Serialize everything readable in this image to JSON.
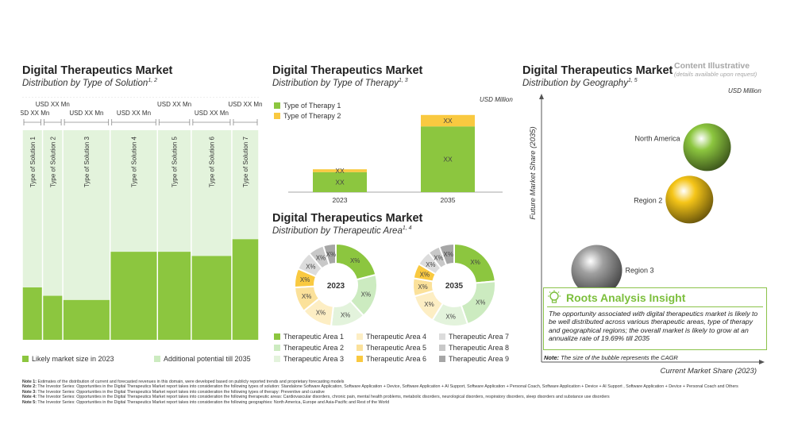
{
  "colors": {
    "bright_green": "#8cc63f",
    "light_green": "#ccebc0",
    "pale_green": "#e3f3dc",
    "yellow": "#f9c940",
    "light_yellow": "#fbe19a",
    "pale_yellow": "#fdeec4",
    "gray1": "#c8c8c8",
    "gray2": "#dcdcdc",
    "gray3": "#a6a6a6",
    "insight_green": "#7cbf3c"
  },
  "solution": {
    "title": "Digital Therapeutics Market",
    "subtitle": "Distribution by Type of Solution",
    "subtitle_sup": "1, 2",
    "legend": [
      "Likely market size in 2023",
      "Additional potential till 2035"
    ]
  },
  "therapy": {
    "title": "Digital Therapeutics Market",
    "subtitle": "Distribution by Type of Therapy",
    "subtitle_sup": "1, 3",
    "unit": "USD Million",
    "legend": [
      "Type of Therapy 1",
      "Type of Therapy 2"
    ]
  },
  "area": {
    "title": "Digital Therapeutics Market",
    "subtitle": "Distribution by Therapeutic Area",
    "subtitle_sup": "1, 4",
    "legend": [
      "Therapeutic Area 1",
      "Therapeutic Area 2",
      "Therapeutic Area 3",
      "Therapeutic Area 4",
      "Therapeutic Area 5",
      "Therapeutic Area 6",
      "Therapeutic Area 7",
      "Therapeutic Area 8",
      "Therapeutic Area 9"
    ]
  },
  "geo": {
    "title": "Digital Therapeutics Market",
    "subtitle": "Distribution by Geography",
    "subtitle_sup": "1, 5",
    "content_illustrative": "Content Illustrative",
    "details": "(details available upon request)",
    "unit": "USD Million",
    "y_label": "Future Market Share (2035)",
    "x_label": "Current Market Share (2023)",
    "note_label": "Note:",
    "note_text": "The size of the bubble represents the CAGR"
  },
  "insight": {
    "title": "Roots Analysis Insight",
    "text": "The opportunity associated with digital therapeutics market is likely to be well distributed across various therapeutic areas, type of therapy and geographical regions; the overall market is likely to grow at an annualize rate of 19.69% till 2035"
  },
  "notes": [
    {
      "label": "Note 1:",
      "text": "Estimates of the distribution of current and forecasted revenues in this domain, were developed based on publicly reported trends and proprietary forecasting models"
    },
    {
      "label": "Note 2:",
      "text": "The Investor Series: Opportunities in the Digital Therapeutics Market report takes into consideration the following types of solution: Standalone Software Application, Software Application + Device, Software Application + AI Support, Software Application + Personal Coach, Software Application + Device + AI Support , Software Application + Device + Personal Coach and Others"
    },
    {
      "label": "Note 3:",
      "text": "The Investor Series: Opportunities in the Digital Therapeutics Market report takes into consideration the following types of therapy: Preventive and curative"
    },
    {
      "label": "Note 4:",
      "text": "The Investor Series: Opportunities in the Digital Therapeutics Market report takes into consideration the following therapeutic areas: Cardiovascular disorders, chronic pain, mental health problems, metabolic disorders, neurological disorders, respiratory disorders, sleep disorders and substance use disorders"
    },
    {
      "label": "Note 5:",
      "text": "The Investor Series: Opportunities in the Digital Therapeutics Market report takes into consideration the following geographies: North America, Europe and Asia-Pacific and Rest of the World"
    }
  ],
  "chart_data": [
    {
      "type": "bar",
      "name": "Distribution by Type of Solution",
      "categories": [
        "Type of Solution 1",
        "Type of Solution 2",
        "Type of Solution 3",
        "Type of Solution 4",
        "Type of Solution 5",
        "Type of Solution 6",
        "Type of Solution 7"
      ],
      "width_labels": [
        "USD XX Mn",
        "USD XX Mn",
        "USD XX Mn",
        "USD XX Mn",
        "USD XX Mn",
        "USD XX Mn",
        "USD XX Mn"
      ],
      "widths": [
        3,
        3,
        7,
        7,
        5,
        6,
        4
      ],
      "label_rows": [
        1,
        0,
        1,
        1,
        0,
        1,
        0
      ],
      "series": [
        {
          "name": "Likely market size in 2023",
          "values": [
            25,
            21,
            19,
            42,
            42,
            40,
            48
          ]
        },
        {
          "name": "Additional potential till 2035",
          "values": [
            75,
            79,
            81,
            58,
            58,
            60,
            52
          ]
        }
      ],
      "ylim": [
        0,
        100
      ]
    },
    {
      "type": "bar",
      "name": "Distribution by Type of Therapy",
      "categories": [
        "2023",
        "2035"
      ],
      "series": [
        {
          "name": "Type of Therapy 1",
          "values": [
            14,
            46
          ],
          "labels": [
            "XX",
            "XX"
          ]
        },
        {
          "name": "Type of Therapy 2",
          "values": [
            2,
            8
          ],
          "labels": [
            "XX",
            "XX"
          ]
        }
      ],
      "ylim": [
        0,
        60
      ]
    },
    {
      "type": "pie",
      "name": "2023",
      "center_label": "2023",
      "labels": [
        "Therapeutic Area 1",
        "Therapeutic Area 2",
        "Therapeutic Area 3",
        "Therapeutic Area 4",
        "Therapeutic Area 5",
        "Therapeutic Area 6",
        "Therapeutic Area 7",
        "Therapeutic Area 8",
        "Therapeutic Area 9"
      ],
      "values": [
        17,
        14,
        11,
        10,
        8,
        6,
        6,
        5,
        4
      ],
      "data_labels": [
        "X%",
        "X%",
        "X%",
        "X%",
        "X%",
        "X%",
        "X%",
        "X%",
        "X%"
      ]
    },
    {
      "type": "pie",
      "name": "2035",
      "center_label": "2035",
      "labels": [
        "Therapeutic Area 1",
        "Therapeutic Area 2",
        "Therapeutic Area 3",
        "Therapeutic Area 4",
        "Therapeutic Area 5",
        "Therapeutic Area 6",
        "Therapeutic Area 7",
        "Therapeutic Area 8",
        "Therapeutic Area 9"
      ],
      "values": [
        20,
        18,
        12,
        10,
        6,
        5,
        5,
        4,
        5
      ],
      "data_labels": [
        "X%",
        "X%",
        "X%",
        "X%",
        "X%",
        "X%",
        "X%",
        "X%",
        "X%"
      ]
    },
    {
      "type": "scatter",
      "name": "Distribution by Geography",
      "points": [
        {
          "label": "North America",
          "x": 7.5,
          "y": 8.2,
          "size": 3.0,
          "color": "#8cc63f"
        },
        {
          "label": "Region 2",
          "x": 6.7,
          "y": 6.2,
          "size": 3.0,
          "color": "#f5c518"
        },
        {
          "label": "Region 3",
          "x": 2.5,
          "y": 3.5,
          "size": 3.2,
          "color": "#a0a0a0"
        }
      ],
      "xlim": [
        0,
        10
      ],
      "ylim": [
        0,
        10
      ]
    }
  ]
}
